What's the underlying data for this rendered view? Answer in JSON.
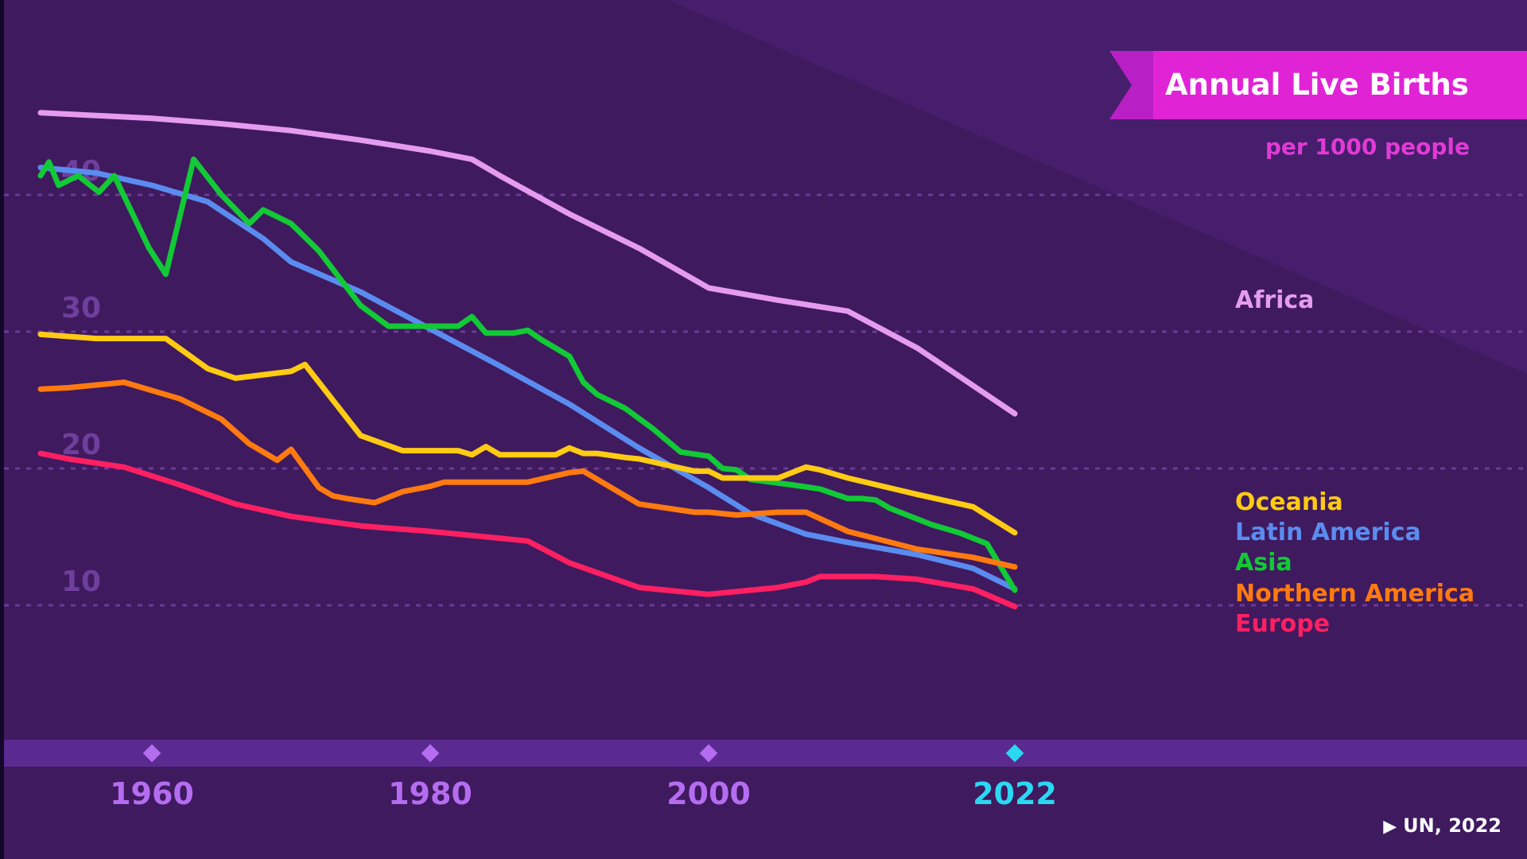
{
  "chart_data": {
    "type": "line",
    "title": "Annual Live Births",
    "subtitle": "per 1000 people",
    "source": "UN, 2022",
    "x_ticks": [
      1960,
      1980,
      2000,
      2022
    ],
    "y_ticks": [
      10,
      20,
      30,
      40
    ],
    "ylim": [
      0,
      50
    ],
    "xlim": [
      1952,
      2040
    ],
    "grid": true,
    "legend_placement": "line-end labels on right",
    "series": [
      {
        "name": "Africa",
        "color": "#e59bf0",
        "x": [
          1952,
          1960,
          1965,
          1970,
          1975,
          1980,
          1983,
          1985,
          1990,
          1995,
          2000,
          2005,
          2010,
          2015,
          2022
        ],
        "y": [
          46,
          45.6,
          45.2,
          44.7,
          44,
          43.2,
          42.6,
          41.4,
          38.6,
          36.1,
          33.2,
          32.3,
          31.5,
          28.8,
          24
        ]
      },
      {
        "name": "Latin America",
        "color": "#5a8cf0",
        "x": [
          1952,
          1956,
          1960,
          1964,
          1968,
          1970,
          1975,
          1980,
          1985,
          1990,
          1995,
          2000,
          2003,
          2007,
          2010,
          2015,
          2019,
          2022
        ],
        "y": [
          42,
          41.6,
          40.7,
          39.5,
          36.8,
          35.1,
          32.9,
          30.2,
          27.5,
          24.7,
          21.5,
          18.6,
          16.7,
          15.2,
          14.6,
          13.7,
          12.7,
          11.2
        ]
      },
      {
        "name": "Asia",
        "color": "#12c936",
        "x": [
          1952,
          1952.6,
          1953.3,
          1954.7,
          1956.2,
          1957.3,
          1959.8,
          1961,
          1963,
          1965,
          1967,
          1968,
          1970,
          1972,
          1975,
          1977,
          1980,
          1982,
          1983,
          1984,
          1986,
          1987,
          1988,
          1990,
          1991,
          1992,
          1994,
          1996,
          1998,
          2000,
          2001,
          2002,
          2003,
          2006,
          2008,
          2010,
          2011,
          2012,
          2013,
          2016,
          2018,
          2019,
          2020,
          2022
        ],
        "y": [
          41.4,
          42.4,
          40.7,
          41.4,
          40.2,
          41.4,
          36.1,
          34.2,
          42.6,
          40,
          37.9,
          38.9,
          37.9,
          35.9,
          31.9,
          30.4,
          30.4,
          30.4,
          31.1,
          29.9,
          29.9,
          30.1,
          29.4,
          28.2,
          26.3,
          25.4,
          24.4,
          22.9,
          21.2,
          20.9,
          20,
          19.9,
          19.2,
          18.8,
          18.5,
          17.8,
          17.8,
          17.7,
          17.1,
          15.9,
          15.3,
          14.9,
          14.5,
          11.1
        ]
      },
      {
        "name": "Oceania",
        "color": "#ffcb13",
        "x": [
          1952,
          1956,
          1961,
          1964,
          1966,
          1970,
          1971,
          1975,
          1978,
          1982,
          1983,
          1984,
          1985,
          1989,
          1990,
          1991,
          1992,
          1994,
          1995,
          1999,
          2000,
          2001,
          2002,
          2005,
          2007,
          2008,
          2010,
          2015,
          2019,
          2022
        ],
        "y": [
          29.8,
          29.5,
          29.5,
          27.3,
          26.6,
          27.1,
          27.6,
          22.4,
          21.3,
          21.3,
          21,
          21.6,
          21,
          21,
          21.5,
          21.1,
          21.1,
          20.8,
          20.7,
          19.8,
          19.8,
          19.3,
          19.3,
          19.3,
          20.1,
          19.9,
          19.3,
          18.1,
          17.2,
          15.3
        ]
      },
      {
        "name": "Northern America",
        "color": "#ff7a10",
        "x": [
          1952,
          1954,
          1958,
          1962,
          1965,
          1967,
          1969,
          1970,
          1972,
          1973,
          1974,
          1976,
          1978,
          1980,
          1981,
          1986,
          1987,
          1990,
          1991,
          1994,
          1995,
          1999,
          2000,
          2002,
          2005,
          2007,
          2010,
          2015,
          2019,
          2022
        ],
        "y": [
          25.8,
          25.9,
          26.3,
          25.1,
          23.6,
          21.8,
          20.6,
          21.4,
          18.6,
          18,
          17.8,
          17.5,
          18.3,
          18.7,
          19,
          19,
          19,
          19.7,
          19.8,
          18,
          17.4,
          16.8,
          16.8,
          16.6,
          16.8,
          16.8,
          15.4,
          14.1,
          13.5,
          12.8
        ]
      },
      {
        "name": "Europe",
        "color": "#ff1f63",
        "x": [
          1952,
          1954,
          1958,
          1962,
          1966,
          1970,
          1975,
          1980,
          1985,
          1987,
          1990,
          1995,
          2000,
          2005,
          2007,
          2008,
          2010,
          2012,
          2015,
          2019,
          2022
        ],
        "y": [
          21.1,
          20.7,
          20.1,
          18.8,
          17.4,
          16.5,
          15.8,
          15.4,
          14.9,
          14.7,
          13.1,
          11.3,
          10.8,
          11.3,
          11.7,
          12.1,
          12.1,
          12.1,
          11.9,
          11.2,
          9.9
        ]
      }
    ]
  }
}
